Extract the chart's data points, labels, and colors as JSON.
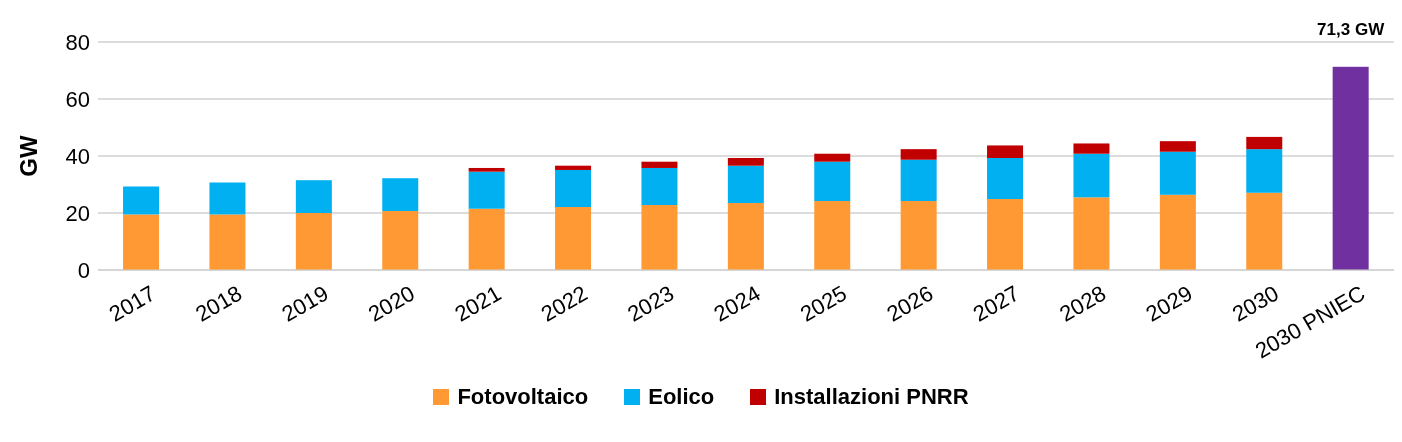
{
  "chart_data": {
    "type": "bar",
    "stacked": true,
    "ylabel": "GW",
    "categories": [
      "2017",
      "2018",
      "2019",
      "2020",
      "2021",
      "2022",
      "2023",
      "2024",
      "2025",
      "2026",
      "2027",
      "2028",
      "2029",
      "2030",
      "2030 PNIEC"
    ],
    "series": [
      {
        "name": "Fotovoltaico",
        "color": "#ff9933",
        "values": [
          19.5,
          19.5,
          20.0,
          20.7,
          21.5,
          22.1,
          22.8,
          23.5,
          24.2,
          24.2,
          24.9,
          25.5,
          26.4,
          27.1,
          null
        ]
      },
      {
        "name": "Eolico",
        "color": "#00b0f0",
        "values": [
          9.8,
          11.2,
          11.5,
          11.5,
          13.0,
          13.0,
          13.0,
          13.1,
          13.8,
          14.5,
          14.4,
          15.3,
          15.1,
          15.3,
          null
        ]
      },
      {
        "name": "Installazioni PNRR",
        "color": "#c00000",
        "values": [
          null,
          null,
          null,
          null,
          1.3,
          1.5,
          2.2,
          2.7,
          2.8,
          3.7,
          4.4,
          3.6,
          3.7,
          4.3,
          null
        ]
      },
      {
        "color": "#7030a0",
        "values": [
          null,
          null,
          null,
          null,
          null,
          null,
          null,
          null,
          null,
          null,
          null,
          null,
          null,
          null,
          71.3
        ],
        "value_labels": [
          null,
          null,
          null,
          null,
          null,
          null,
          null,
          null,
          null,
          null,
          null,
          null,
          null,
          null,
          "71,3 GW"
        ]
      }
    ],
    "ylim": [
      0,
      80
    ],
    "yticks": [
      0,
      20,
      40,
      60,
      80
    ],
    "grid": "y",
    "legend": "bottom"
  }
}
